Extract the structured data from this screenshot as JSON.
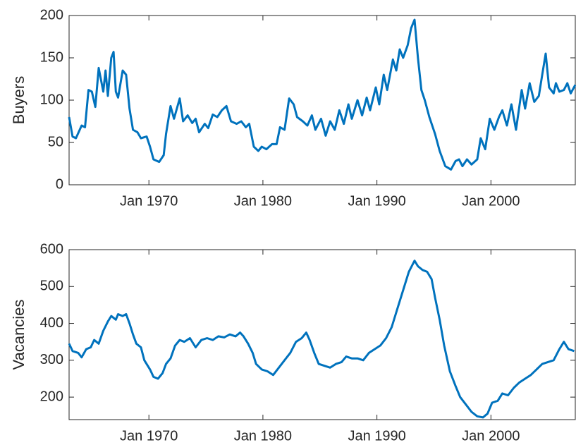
{
  "chart_data": [
    {
      "type": "line",
      "ylabel": "Buyers",
      "x": [
        1963.0,
        1963.3,
        1963.6,
        1964.1,
        1964.4,
        1964.7,
        1965.0,
        1965.3,
        1965.6,
        1966.0,
        1966.2,
        1966.4,
        1966.7,
        1966.9,
        1967.1,
        1967.3,
        1967.7,
        1968.0,
        1968.3,
        1968.6,
        1969.0,
        1969.3,
        1969.8,
        1970.1,
        1970.4,
        1970.9,
        1971.3,
        1971.5,
        1971.9,
        1972.2,
        1972.7,
        1973.0,
        1973.4,
        1973.8,
        1974.1,
        1974.4,
        1974.9,
        1975.2,
        1975.6,
        1976.0,
        1976.4,
        1976.8,
        1977.2,
        1977.7,
        1978.1,
        1978.5,
        1978.8,
        1979.2,
        1979.6,
        1979.9,
        1980.3,
        1980.8,
        1981.2,
        1981.5,
        1981.9,
        1982.3,
        1982.7,
        1983.0,
        1983.5,
        1983.9,
        1984.3,
        1984.6,
        1985.1,
        1985.5,
        1985.9,
        1986.3,
        1986.7,
        1987.1,
        1987.5,
        1987.8,
        1988.3,
        1988.7,
        1989.1,
        1989.4,
        1989.9,
        1990.2,
        1990.6,
        1990.9,
        1991.4,
        1991.7,
        1992.0,
        1992.3,
        1992.7,
        1993.0,
        1993.3,
        1993.6,
        1993.9,
        1994.2,
        1994.6,
        1995.1,
        1995.5,
        1996.0,
        1996.5,
        1996.9,
        1997.2,
        1997.5,
        1997.9,
        1998.3,
        1998.8,
        1999.1,
        1999.5,
        1999.9,
        2000.3,
        2000.7,
        2001.0,
        2001.4,
        2001.8,
        2002.2,
        2002.7,
        2003.0,
        2003.4,
        2003.8,
        2004.2,
        2004.5,
        2004.8,
        2005.1,
        2005.5,
        2005.7,
        2006.0,
        2006.4,
        2006.7,
        2007.0,
        2007.4
      ],
      "values": [
        80,
        57,
        55,
        70,
        68,
        112,
        110,
        92,
        138,
        110,
        135,
        105,
        150,
        157,
        110,
        103,
        135,
        130,
        90,
        65,
        62,
        55,
        57,
        45,
        30,
        27,
        35,
        60,
        93,
        78,
        102,
        75,
        82,
        73,
        78,
        62,
        72,
        67,
        83,
        80,
        88,
        93,
        75,
        72,
        75,
        68,
        72,
        45,
        40,
        45,
        42,
        48,
        48,
        68,
        65,
        102,
        95,
        80,
        75,
        70,
        82,
        65,
        78,
        58,
        75,
        65,
        88,
        72,
        95,
        78,
        100,
        82,
        103,
        88,
        115,
        95,
        130,
        112,
        148,
        135,
        160,
        150,
        165,
        185,
        195,
        150,
        112,
        100,
        80,
        60,
        40,
        22,
        18,
        28,
        30,
        22,
        30,
        24,
        30,
        55,
        42,
        78,
        65,
        80,
        88,
        70,
        95,
        65,
        112,
        90,
        120,
        98,
        105,
        130,
        155,
        115,
        108,
        120,
        110,
        112,
        120,
        108,
        118
      ],
      "color": "#0072bd",
      "xlim": [
        1963.0,
        2007.4
      ],
      "xticks": [
        {
          "value": 1970,
          "label": "Jan 1970"
        },
        {
          "value": 1980,
          "label": "Jan 1980"
        },
        {
          "value": 1990,
          "label": "Jan 1990"
        },
        {
          "value": 2000,
          "label": "Jan 2000"
        }
      ],
      "ylim": [
        0,
        200
      ],
      "yticks": [
        0,
        50,
        100,
        150,
        200
      ]
    },
    {
      "type": "line",
      "ylabel": "Vacancies",
      "x": [
        1963.0,
        1963.3,
        1963.8,
        1964.1,
        1964.5,
        1964.9,
        1965.2,
        1965.6,
        1966.0,
        1966.4,
        1966.7,
        1967.1,
        1967.3,
        1967.7,
        1968.0,
        1968.3,
        1968.6,
        1968.9,
        1969.3,
        1969.6,
        1970.1,
        1970.4,
        1970.8,
        1971.2,
        1971.5,
        1971.9,
        1972.3,
        1972.7,
        1973.1,
        1973.6,
        1974.1,
        1974.6,
        1975.1,
        1975.6,
        1976.1,
        1976.6,
        1977.1,
        1977.6,
        1978.0,
        1978.3,
        1978.7,
        1979.1,
        1979.4,
        1979.9,
        1980.4,
        1980.9,
        1981.4,
        1981.9,
        1982.4,
        1982.9,
        1983.4,
        1983.8,
        1984.1,
        1984.5,
        1984.9,
        1985.4,
        1985.9,
        1986.4,
        1986.9,
        1987.3,
        1987.8,
        1988.3,
        1988.8,
        1989.3,
        1989.8,
        1990.3,
        1990.8,
        1991.3,
        1991.8,
        1992.3,
        1992.8,
        1993.3,
        1993.6,
        1994.0,
        1994.4,
        1994.8,
        1995.1,
        1995.5,
        1995.9,
        1996.4,
        1996.9,
        1997.3,
        1997.8,
        1998.3,
        1998.8,
        1999.3,
        1999.7,
        2000.1,
        2000.6,
        2001.0,
        2001.5,
        2002.0,
        2002.5,
        2003.0,
        2003.5,
        2004.0,
        2004.5,
        2005.0,
        2005.5,
        2006.0,
        2006.4,
        2006.8,
        2007.3
      ],
      "values": [
        345,
        325,
        320,
        308,
        330,
        335,
        355,
        345,
        380,
        405,
        420,
        410,
        425,
        420,
        425,
        400,
        370,
        345,
        335,
        300,
        275,
        255,
        250,
        265,
        290,
        305,
        340,
        355,
        350,
        360,
        335,
        355,
        360,
        355,
        365,
        362,
        370,
        365,
        375,
        365,
        345,
        320,
        290,
        275,
        270,
        260,
        280,
        300,
        320,
        350,
        360,
        375,
        355,
        320,
        290,
        285,
        280,
        290,
        295,
        310,
        305,
        305,
        300,
        320,
        330,
        340,
        360,
        390,
        440,
        490,
        540,
        570,
        555,
        545,
        540,
        520,
        470,
        410,
        340,
        270,
        230,
        200,
        180,
        160,
        148,
        145,
        155,
        185,
        190,
        210,
        205,
        225,
        240,
        250,
        260,
        275,
        290,
        295,
        300,
        330,
        350,
        330,
        325
      ],
      "color": "#0072bd",
      "xlim": [
        1963.0,
        2007.4
      ],
      "xticks": [
        {
          "value": 1970,
          "label": "Jan 1970"
        },
        {
          "value": 1980,
          "label": "Jan 1980"
        },
        {
          "value": 1990,
          "label": "Jan 1990"
        },
        {
          "value": 2000,
          "label": "Jan 2000"
        }
      ],
      "ylim": [
        139,
        600
      ],
      "yticks": [
        200,
        300,
        400,
        500,
        600
      ]
    }
  ]
}
